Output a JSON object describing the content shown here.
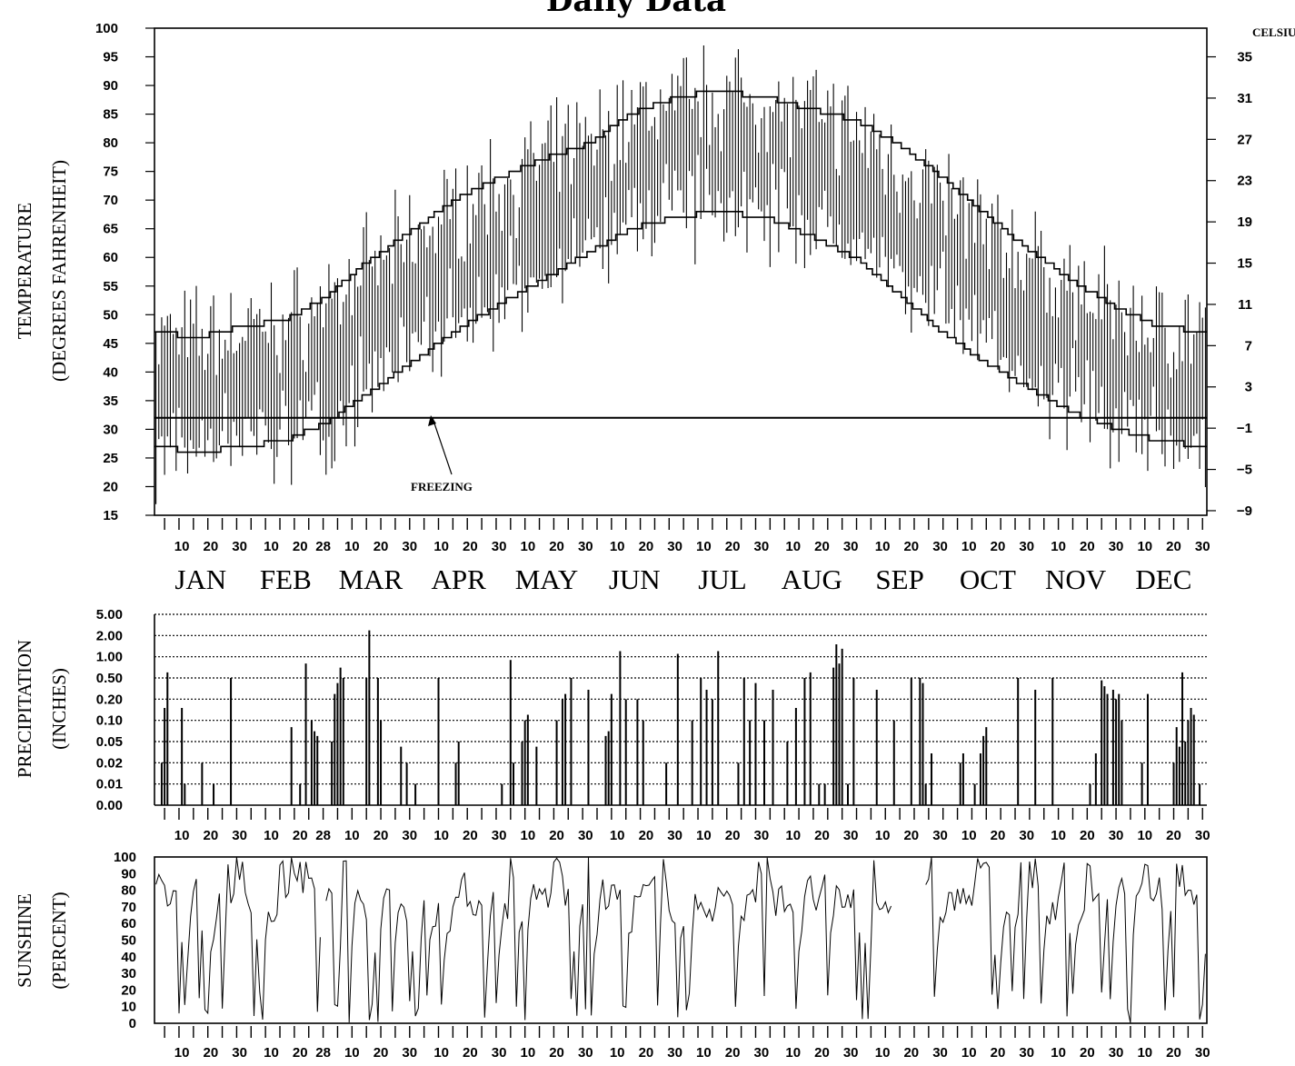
{
  "chart_data": [
    {
      "type": "line",
      "title": "Daily Data",
      "ylabel": "TEMPERATURE",
      "ylabel_sub": "(DEGREES FAHRENHEIT)",
      "right_axis_label": "CELSIUS",
      "ylim": [
        15,
        100
      ],
      "y_ticks": [
        15,
        20,
        25,
        30,
        35,
        40,
        45,
        50,
        55,
        60,
        65,
        70,
        75,
        80,
        85,
        90,
        95,
        100
      ],
      "celsius_ticks": [
        -9,
        -5,
        -1,
        3,
        7,
        11,
        15,
        19,
        23,
        27,
        31,
        35
      ],
      "annotation": "FREEZING",
      "freezing_line": 32,
      "months": [
        "JAN",
        "FEB",
        "MAR",
        "APR",
        "MAY",
        "JUN",
        "JUL",
        "AUG",
        "SEP",
        "OCT",
        "NOV",
        "DEC"
      ],
      "series": [
        {
          "name": "",
          "kind": "normal high",
          "x": [
            1,
            15,
            32,
            46,
            60,
            74,
            91,
            105,
            121,
            135,
            152,
            166,
            182,
            196,
            213,
            227,
            244,
            258,
            274,
            288,
            305,
            319,
            335,
            349,
            365
          ],
          "values": [
            47,
            46,
            48,
            49,
            53,
            59,
            65,
            70,
            74,
            77,
            80,
            85,
            88,
            89,
            88,
            86,
            84,
            80,
            74,
            68,
            61,
            56,
            51,
            48,
            47
          ]
        },
        {
          "name": "",
          "kind": "normal low",
          "x": [
            1,
            15,
            32,
            46,
            60,
            74,
            91,
            105,
            121,
            135,
            152,
            166,
            182,
            196,
            213,
            227,
            244,
            258,
            274,
            288,
            305,
            319,
            335,
            349,
            365
          ],
          "values": [
            27,
            26,
            27,
            28,
            31,
            36,
            42,
            47,
            52,
            56,
            61,
            65,
            67,
            68,
            67,
            64,
            60,
            54,
            47,
            42,
            37,
            33,
            30,
            28,
            27
          ]
        }
      ],
      "daily_ranges": "vertical bars from daily low to daily high for each day of the year"
    },
    {
      "type": "bar",
      "ylabel": "PRECIPITATION",
      "ylabel_sub": "(INCHES)",
      "y_ticks": [
        "5.00",
        "2.00",
        "1.00",
        "0.50",
        "0.20",
        "0.10",
        "0.05",
        "0.02",
        "0.01",
        "0.00"
      ],
      "y_tick_values": [
        5.0,
        2.0,
        1.0,
        0.5,
        0.2,
        0.1,
        0.05,
        0.02,
        0.01,
        0.0
      ],
      "grid": true,
      "events": [
        {
          "day": 3,
          "value": 0.02
        },
        {
          "day": 4,
          "value": 0.15
        },
        {
          "day": 5,
          "value": 0.6
        },
        {
          "day": 10,
          "value": 0.15
        },
        {
          "day": 11,
          "value": 0.01
        },
        {
          "day": 17,
          "value": 0.02
        },
        {
          "day": 21,
          "value": 0.01
        },
        {
          "day": 27,
          "value": 0.5
        },
        {
          "day": 48,
          "value": 0.08
        },
        {
          "day": 51,
          "value": 0.01
        },
        {
          "day": 53,
          "value": 0.8
        },
        {
          "day": 55,
          "value": 0.1
        },
        {
          "day": 56,
          "value": 0.07
        },
        {
          "day": 57,
          "value": 0.06
        },
        {
          "day": 62,
          "value": 0.05
        },
        {
          "day": 63,
          "value": 0.25
        },
        {
          "day": 64,
          "value": 0.4
        },
        {
          "day": 65,
          "value": 0.7
        },
        {
          "day": 66,
          "value": 0.5
        },
        {
          "day": 74,
          "value": 0.5
        },
        {
          "day": 75,
          "value": 2.5
        },
        {
          "day": 78,
          "value": 0.5
        },
        {
          "day": 79,
          "value": 0.1
        },
        {
          "day": 86,
          "value": 0.04
        },
        {
          "day": 88,
          "value": 0.02
        },
        {
          "day": 91,
          "value": 0.01
        },
        {
          "day": 99,
          "value": 0.5
        },
        {
          "day": 105,
          "value": 0.02
        },
        {
          "day": 106,
          "value": 0.05
        },
        {
          "day": 121,
          "value": 0.01
        },
        {
          "day": 124,
          "value": 0.9
        },
        {
          "day": 125,
          "value": 0.02
        },
        {
          "day": 128,
          "value": 0.05
        },
        {
          "day": 129,
          "value": 0.1
        },
        {
          "day": 130,
          "value": 0.12
        },
        {
          "day": 133,
          "value": 0.04
        },
        {
          "day": 140,
          "value": 0.1
        },
        {
          "day": 142,
          "value": 0.2
        },
        {
          "day": 143,
          "value": 0.25
        },
        {
          "day": 145,
          "value": 0.5
        },
        {
          "day": 151,
          "value": 0.3
        },
        {
          "day": 157,
          "value": 0.06
        },
        {
          "day": 158,
          "value": 0.07
        },
        {
          "day": 159,
          "value": 0.25
        },
        {
          "day": 162,
          "value": 1.2
        },
        {
          "day": 164,
          "value": 0.2
        },
        {
          "day": 168,
          "value": 0.2
        },
        {
          "day": 170,
          "value": 0.1
        },
        {
          "day": 178,
          "value": 0.02
        },
        {
          "day": 182,
          "value": 1.1
        },
        {
          "day": 187,
          "value": 0.1
        },
        {
          "day": 190,
          "value": 0.5
        },
        {
          "day": 192,
          "value": 0.3
        },
        {
          "day": 194,
          "value": 0.2
        },
        {
          "day": 196,
          "value": 1.2
        },
        {
          "day": 203,
          "value": 0.02
        },
        {
          "day": 205,
          "value": 0.5
        },
        {
          "day": 207,
          "value": 0.1
        },
        {
          "day": 209,
          "value": 0.4
        },
        {
          "day": 212,
          "value": 0.1
        },
        {
          "day": 215,
          "value": 0.3
        },
        {
          "day": 220,
          "value": 0.05
        },
        {
          "day": 223,
          "value": 0.15
        },
        {
          "day": 226,
          "value": 0.5
        },
        {
          "day": 228,
          "value": 0.6
        },
        {
          "day": 231,
          "value": 0.01
        },
        {
          "day": 233,
          "value": 0.01
        },
        {
          "day": 236,
          "value": 0.7
        },
        {
          "day": 237,
          "value": 1.5
        },
        {
          "day": 238,
          "value": 0.8
        },
        {
          "day": 239,
          "value": 1.3
        },
        {
          "day": 241,
          "value": 0.01
        },
        {
          "day": 243,
          "value": 0.5
        },
        {
          "day": 251,
          "value": 0.3
        },
        {
          "day": 257,
          "value": 0.1
        },
        {
          "day": 263,
          "value": 0.5
        },
        {
          "day": 266,
          "value": 0.5
        },
        {
          "day": 267,
          "value": 0.4
        },
        {
          "day": 268,
          "value": 0.01
        },
        {
          "day": 270,
          "value": 0.03
        },
        {
          "day": 280,
          "value": 0.02
        },
        {
          "day": 281,
          "value": 0.03
        },
        {
          "day": 285,
          "value": 0.01
        },
        {
          "day": 287,
          "value": 0.03
        },
        {
          "day": 288,
          "value": 0.06
        },
        {
          "day": 289,
          "value": 0.08
        },
        {
          "day": 300,
          "value": 0.5
        },
        {
          "day": 306,
          "value": 0.3
        },
        {
          "day": 312,
          "value": 0.5
        },
        {
          "day": 325,
          "value": 0.01
        },
        {
          "day": 327,
          "value": 0.03
        },
        {
          "day": 329,
          "value": 0.45
        },
        {
          "day": 330,
          "value": 0.35
        },
        {
          "day": 331,
          "value": 0.25
        },
        {
          "day": 333,
          "value": 0.3
        },
        {
          "day": 334,
          "value": 0.2
        },
        {
          "day": 335,
          "value": 0.25
        },
        {
          "day": 336,
          "value": 0.1
        },
        {
          "day": 343,
          "value": 0.02
        },
        {
          "day": 345,
          "value": 0.25
        },
        {
          "day": 354,
          "value": 0.02
        },
        {
          "day": 355,
          "value": 0.08
        },
        {
          "day": 356,
          "value": 0.04
        },
        {
          "day": 357,
          "value": 0.6
        },
        {
          "day": 358,
          "value": 0.05
        },
        {
          "day": 359,
          "value": 0.1
        },
        {
          "day": 360,
          "value": 0.15
        },
        {
          "day": 361,
          "value": 0.12
        },
        {
          "day": 363,
          "value": 0.01
        }
      ]
    },
    {
      "type": "line",
      "ylabel": "SUNSHINE",
      "ylabel_sub": "(PERCENT)",
      "ylim": [
        0,
        100
      ],
      "y_ticks": [
        0,
        10,
        20,
        30,
        40,
        50,
        60,
        70,
        80,
        90,
        100
      ],
      "day_ticks": [
        "10",
        "20",
        "30",
        "10",
        "20",
        "28",
        "10",
        "20",
        "30",
        "10",
        "20",
        "30",
        "10",
        "20",
        "30",
        "10",
        "20",
        "30",
        "10",
        "20",
        "30",
        "10",
        "20",
        "30",
        "10",
        "20",
        "30",
        "10",
        "20",
        "30",
        "10",
        "20",
        "30",
        "10",
        "20",
        "30"
      ],
      "gaps": [
        [
          58,
          60
        ],
        [
          256,
          268
        ]
      ]
    }
  ]
}
